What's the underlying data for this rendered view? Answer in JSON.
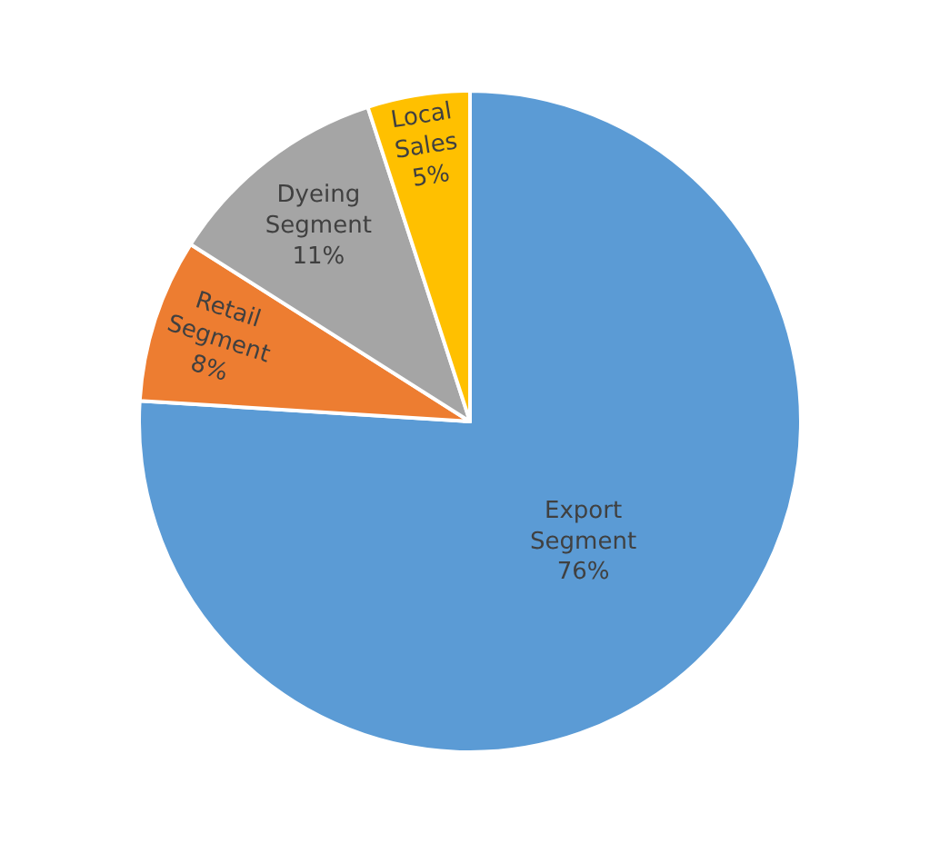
{
  "chart_data": {
    "type": "pie",
    "categories": [
      "Export Segment",
      "Retail Segment",
      "Dyeing Segment",
      "Local Sales"
    ],
    "values": [
      76,
      8,
      11,
      5
    ],
    "colors": [
      "#5b9bd5",
      "#ed7d31",
      "#a5a5a5",
      "#ffc000"
    ],
    "value_labels": [
      "76%",
      "8%",
      "11%",
      "5%"
    ]
  }
}
